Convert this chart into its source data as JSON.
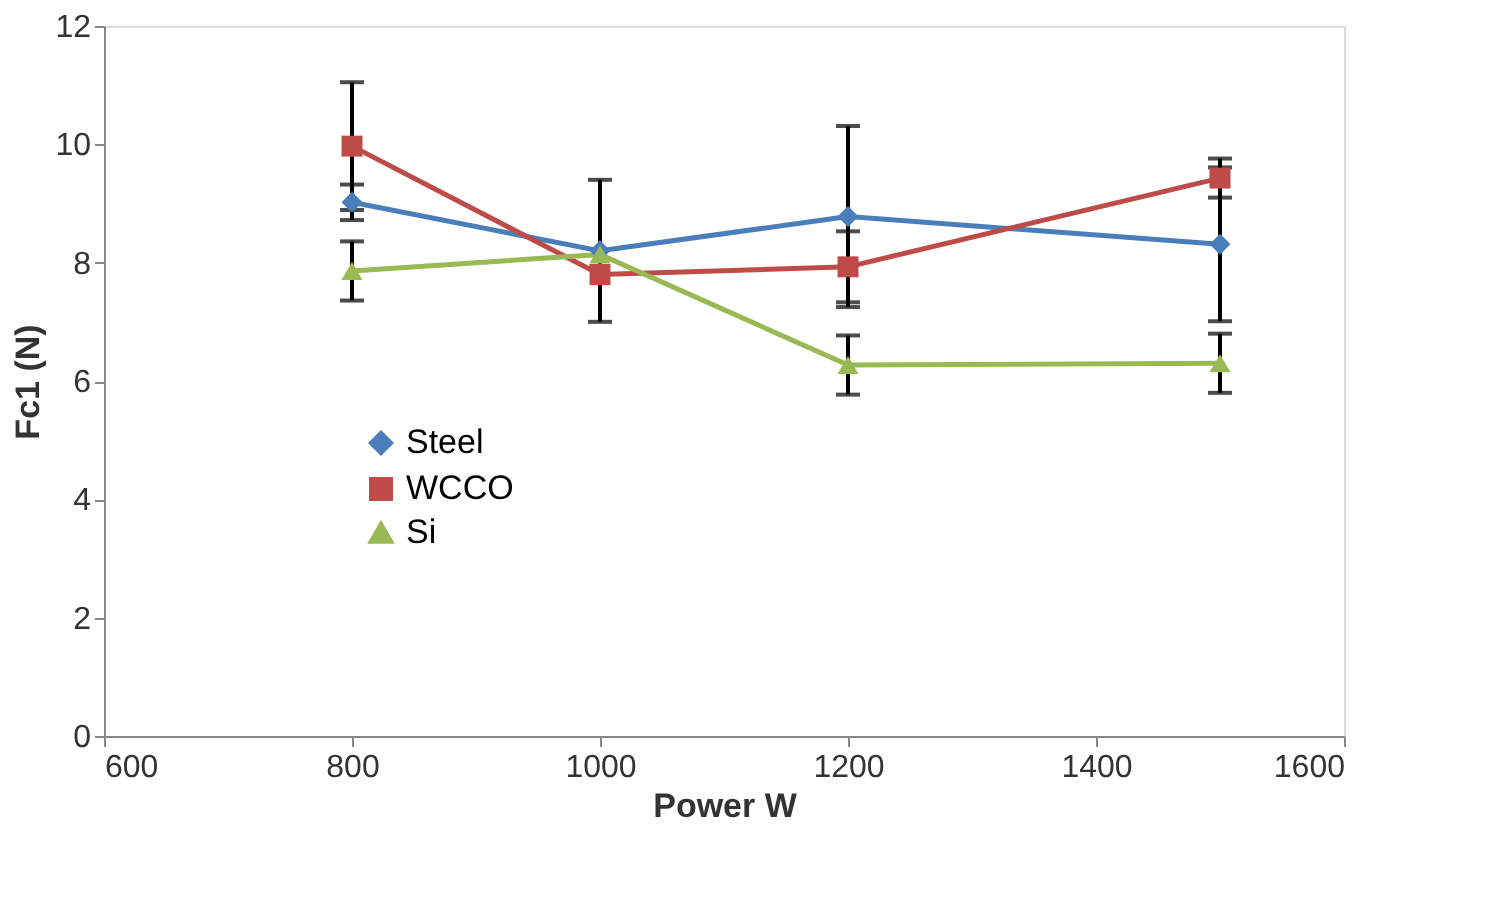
{
  "chart_data": {
    "type": "line",
    "xlabel": "Power W",
    "ylabel": "Fc1 (N)",
    "x": [
      800,
      1000,
      1200,
      1500
    ],
    "series": [
      {
        "name": "Steel",
        "color": "#4a7ebb",
        "marker": "diamond",
        "values": [
          9.02,
          8.2,
          8.78,
          8.31
        ],
        "errors": [
          0.3,
          1.2,
          1.53,
          1.3
        ]
      },
      {
        "name": "WCCO",
        "color": "#be4b48",
        "marker": "square",
        "values": [
          9.97,
          7.8,
          7.93,
          9.43
        ],
        "errors": [
          1.08,
          null,
          0.6,
          0.33
        ]
      },
      {
        "name": "Si",
        "color": "#98b954",
        "marker": "triangle",
        "values": [
          7.86,
          8.14,
          6.27,
          6.3
        ],
        "errors": [
          0.5,
          null,
          0.5,
          0.5
        ]
      }
    ],
    "xlim": [
      600,
      1600
    ],
    "xticks": [
      600,
      800,
      1000,
      1200,
      1400,
      1600
    ],
    "ylim": [
      0,
      12
    ],
    "yticks": [
      0,
      2,
      4,
      6,
      8,
      10,
      12
    ],
    "grid": false,
    "legend": "left",
    "line_style": "solid"
  }
}
